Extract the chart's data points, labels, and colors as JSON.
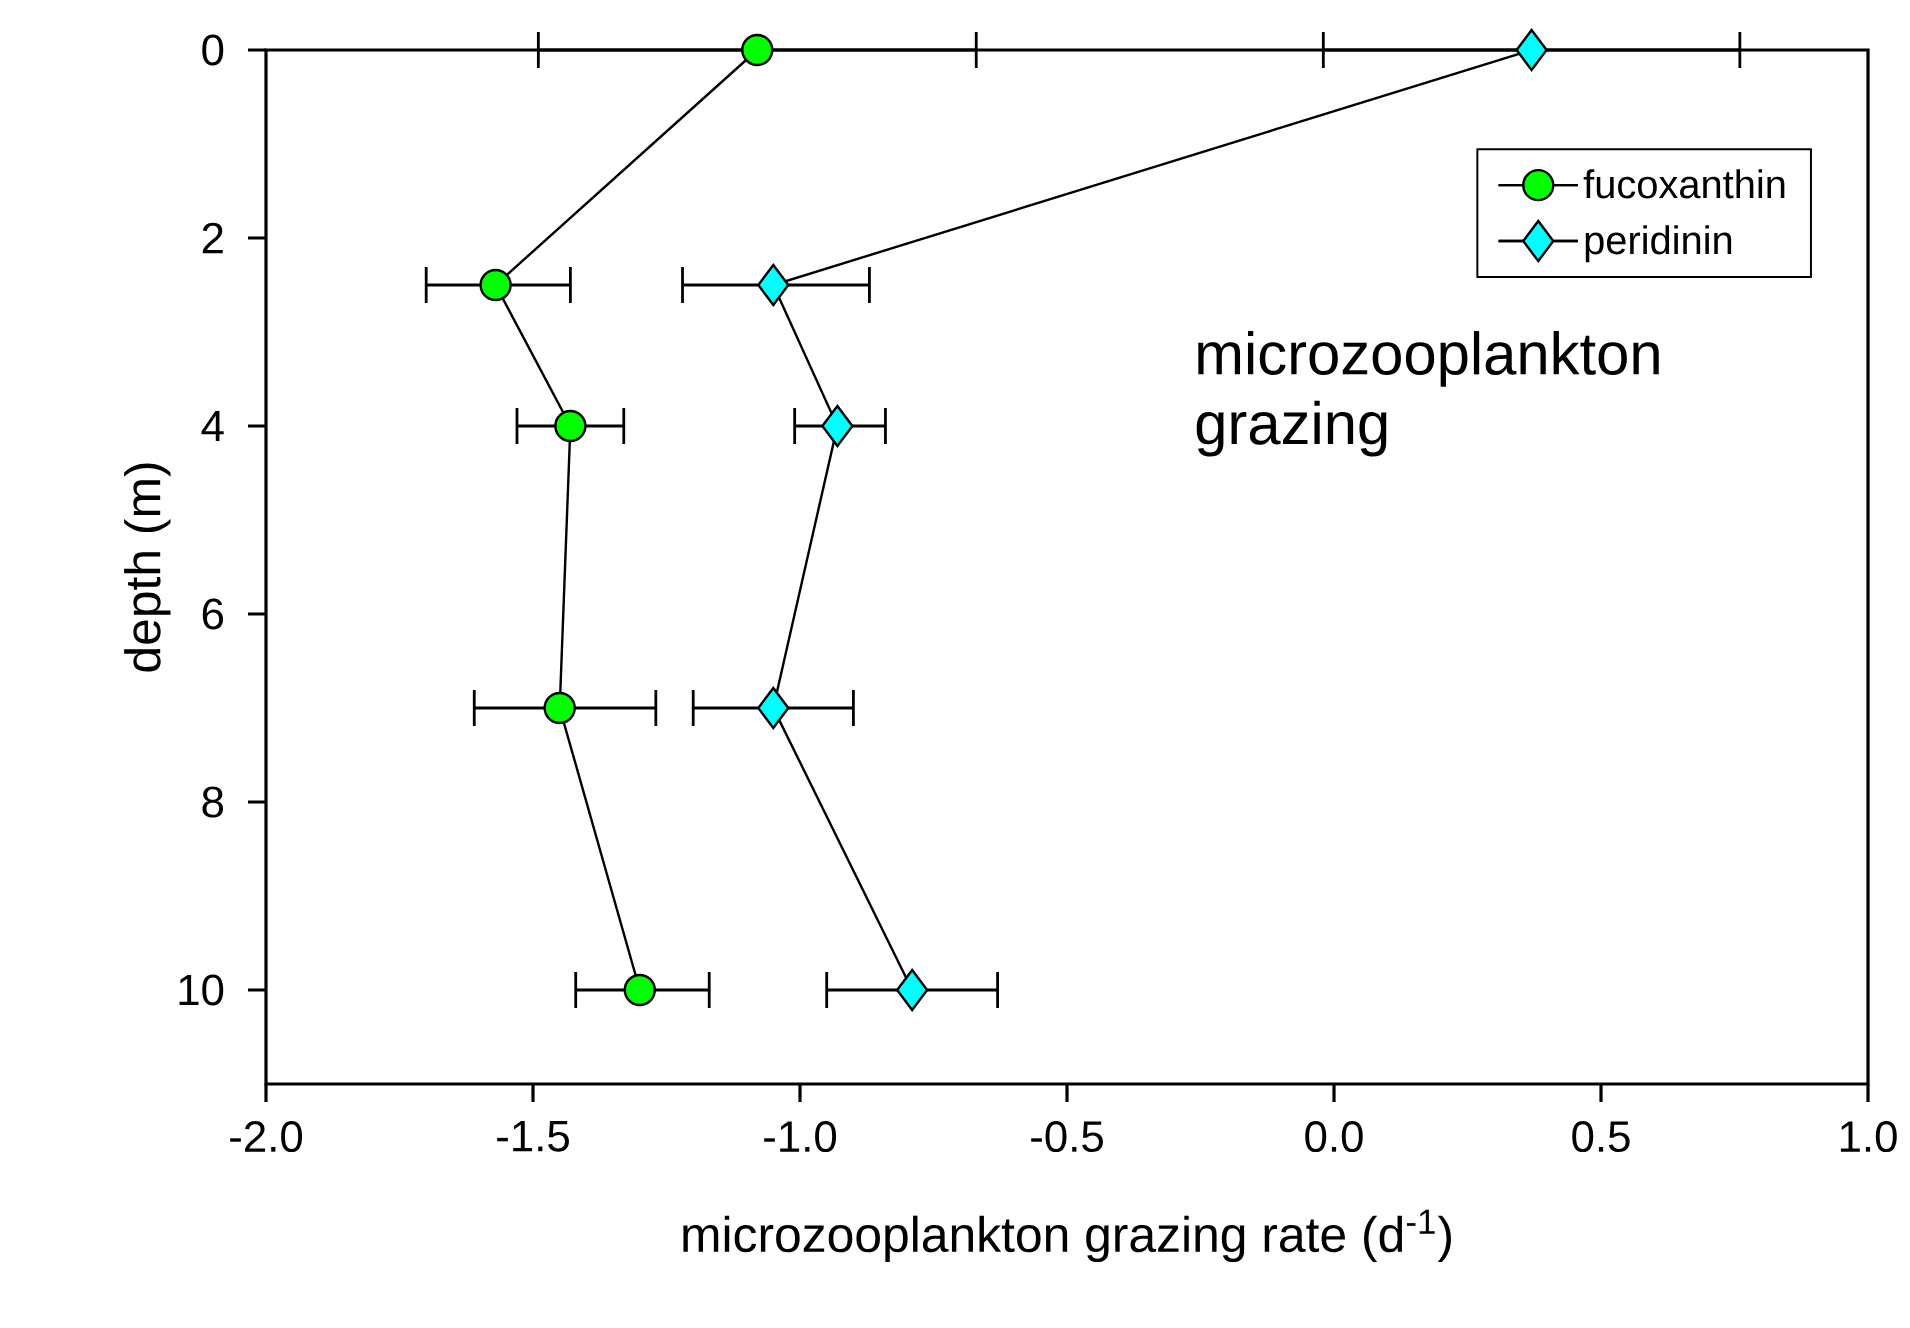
{
  "chart_data": {
    "type": "line",
    "xlabel": "microzooplankton grazing rate (d$^{-1}$)",
    "ylabel": "depth (m)",
    "series": [
      {
        "name": "fucoxanthin",
        "color": "#00ff00",
        "marker": "circle",
        "x": [
          -1.08,
          -1.57,
          -1.43,
          -1.45,
          -1.3
        ],
        "values": [
          0,
          2.5,
          4,
          7,
          10
        ],
        "xerrors": [
          [
            -1.49,
            -0.67
          ],
          [
            -1.7,
            -1.43
          ],
          [
            -1.53,
            -1.33
          ],
          [
            -1.61,
            -1.27
          ],
          [
            -1.42,
            -1.17
          ]
        ]
      },
      {
        "name": "peridinin",
        "color": "#00ffff",
        "marker": "diamond",
        "x": [
          0.37,
          -1.05,
          -0.93,
          -1.05,
          -0.79
        ],
        "values": [
          0,
          2.5,
          4,
          7,
          10
        ],
        "xerrors": [
          [
            -0.02,
            0.76
          ],
          [
            -1.22,
            -0.87
          ],
          [
            -1.01,
            -0.84
          ],
          [
            -1.2,
            -0.9
          ],
          [
            -0.95,
            -0.63
          ]
        ]
      }
    ],
    "xlim": [
      -2,
      1
    ],
    "ylim": [
      11,
      0
    ],
    "xticks": [
      {
        "value": -2,
        "label": "-2.0"
      },
      {
        "value": -1.5,
        "label": "-1.5"
      },
      {
        "value": -1,
        "label": "-1.0"
      },
      {
        "value": -0.5,
        "label": "-0.5"
      },
      {
        "value": 0,
        "label": "0.0"
      },
      {
        "value": 0.5,
        "label": "0.5"
      },
      {
        "value": 1,
        "label": "1.0"
      }
    ],
    "yticks": [
      0,
      2,
      4,
      6,
      8,
      10
    ],
    "grid": false,
    "legend": "top right",
    "line_style": "solid",
    "annotations": [
      "microzooplankton grazing"
    ]
  }
}
